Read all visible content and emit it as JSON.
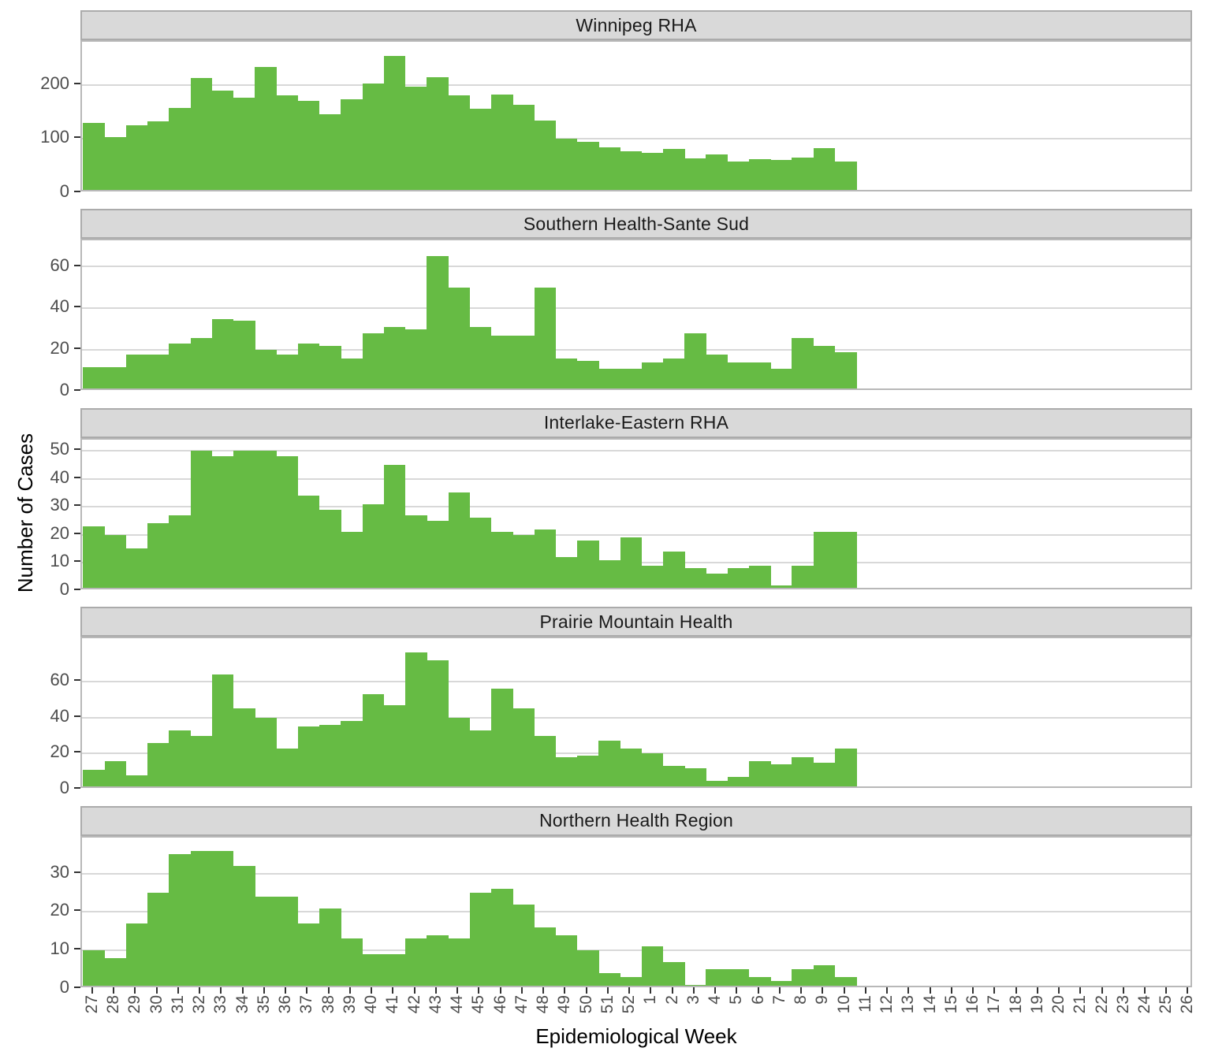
{
  "chart_data": {
    "type": "bar",
    "title": "",
    "xlabel": "Epidemiological Week",
    "ylabel": "Number of Cases",
    "bar_color": "#66BB44",
    "strip_bg": "#D9D9D9",
    "grid": "major-horizontal-only",
    "legend": "none",
    "x_tick_labels": [
      "27",
      "28",
      "29",
      "30",
      "31",
      "32",
      "33",
      "34",
      "35",
      "36",
      "37",
      "38",
      "39",
      "40",
      "41",
      "42",
      "43",
      "44",
      "45",
      "46",
      "47",
      "48",
      "49",
      "50",
      "51",
      "52",
      "1",
      "2",
      "3",
      "4",
      "5",
      "6",
      "7",
      "8",
      "9",
      "10",
      "11",
      "12",
      "13",
      "14",
      "15",
      "16",
      "17",
      "18",
      "19",
      "20",
      "21",
      "22",
      "23",
      "24",
      "25",
      "26"
    ],
    "note": "bars present for weeks 27 through 10 only (36 bars per facet)",
    "facets": [
      {
        "title": "Winnipeg RHA",
        "yticks": [
          0,
          100,
          200
        ],
        "ymax": 280,
        "values": [
          130,
          104,
          126,
          132,
          158,
          213,
          190,
          176,
          233,
          181,
          171,
          146,
          173,
          203,
          254,
          197,
          215,
          181,
          156,
          182,
          163,
          134,
          101,
          95,
          84,
          77,
          74,
          81,
          64,
          72,
          58,
          63,
          61,
          65,
          83,
          58
        ]
      },
      {
        "title": "Southern Health-Sante Sud",
        "yticks": [
          0,
          20,
          40,
          60
        ],
        "ymax": 72.5,
        "values": [
          12,
          12,
          18,
          18,
          23,
          26,
          35,
          34,
          20,
          18,
          23,
          22,
          16,
          28,
          31,
          30,
          65,
          50,
          31,
          27,
          27,
          50,
          16,
          15,
          11,
          11,
          14,
          16,
          28,
          18,
          14,
          14,
          11,
          26,
          22,
          19
        ]
      },
      {
        "title": "Interlake-Eastern RHA",
        "yticks": [
          0,
          10,
          20,
          30,
          40,
          50
        ],
        "ymax": 54,
        "values": [
          23,
          20,
          15,
          24,
          27,
          50,
          48,
          50,
          50,
          48,
          34,
          29,
          21,
          31,
          45,
          27,
          25,
          35,
          26,
          21,
          20,
          22,
          12,
          18,
          11,
          19,
          9,
          14,
          8,
          6,
          8,
          9,
          2,
          9,
          21,
          21
        ]
      },
      {
        "title": "Prairie Mountain Health",
        "yticks": [
          0,
          20,
          40,
          60
        ],
        "ymax": 84,
        "values": [
          11,
          16,
          8,
          26,
          33,
          30,
          64,
          45,
          40,
          23,
          35,
          36,
          38,
          53,
          47,
          76,
          72,
          40,
          33,
          56,
          45,
          30,
          18,
          19,
          27,
          23,
          20,
          13,
          12,
          5,
          7,
          16,
          14,
          18,
          15,
          23
        ]
      },
      {
        "title": "Northern Health Region",
        "yticks": [
          0,
          10,
          20,
          30
        ],
        "ymax": 39.5,
        "values": [
          10,
          8,
          17,
          25,
          35,
          36,
          36,
          32,
          24,
          24,
          17,
          21,
          13,
          9,
          9,
          13,
          14,
          13,
          25,
          26,
          22,
          16,
          14,
          10,
          4,
          3,
          11,
          7,
          1,
          5,
          5,
          3,
          2,
          5,
          6,
          3
        ]
      }
    ]
  }
}
